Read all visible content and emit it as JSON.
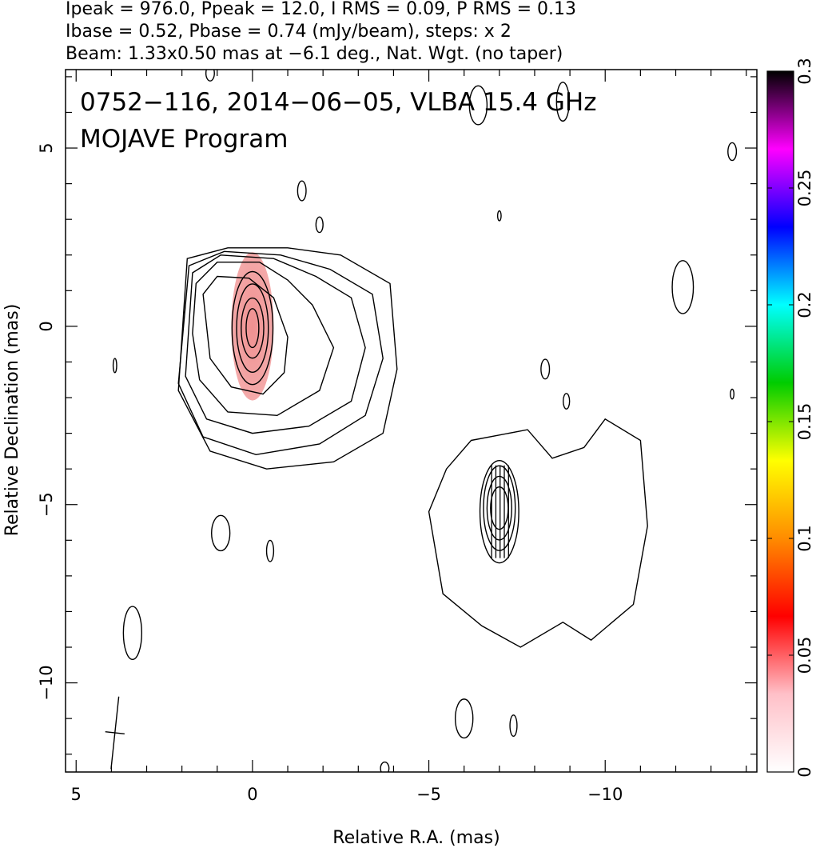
{
  "header": {
    "line1": "Ipeak = 976.0, Ppeak = 12.0, I RMS = 0.09, P RMS = 0.13",
    "line2": "Ibase = 0.52, Pbase = 0.74 (mJy/beam), steps: x 2",
    "line3": "Beam: 1.33x0.50 mas at −6.1 deg., Nat. Wgt. (no taper)"
  },
  "overlay": {
    "line1": "0752−116, 2014−06−05, VLBA 15.4 GHz",
    "line2": "MOJAVE Program"
  },
  "chart_data": {
    "type": "heatmap",
    "subtype": "radio contour map with polarization colour overlay",
    "xlabel": "Relative R.A. (mas)",
    "ylabel": "Relative Declination (mas)",
    "xlim": [
      5.3,
      -14.3
    ],
    "ylim": [
      -12.5,
      7.2
    ],
    "x_reversed": true,
    "xticks": [
      5,
      0,
      -5,
      -10
    ],
    "xtick_labels": [
      "5",
      "0",
      "−5",
      "−10"
    ],
    "yticks": [
      5,
      0,
      -5,
      -10
    ],
    "ytick_labels": [
      "5",
      "0",
      "−5",
      "−10"
    ],
    "colorbar": {
      "label_ticks": [
        0,
        0.05,
        0.1,
        0.15,
        0.2,
        0.25,
        0.3
      ],
      "label_texts": [
        "0",
        "0.05",
        "0.1",
        "0.15",
        "0.2",
        "0.25",
        "0.3"
      ],
      "range": [
        0,
        0.3
      ],
      "colors": [
        "#ffffff",
        "#ffc0c8",
        "#ff0000",
        "#ff8c00",
        "#ffff00",
        "#00cc00",
        "#00ffff",
        "#0000ff",
        "#ff00ff",
        "#000000"
      ]
    },
    "core": {
      "ra": 0.0,
      "dec": 0.0,
      "peak_mJy_per_beam": 976.0
    },
    "secondary_component": {
      "ra": -7.0,
      "dec": -5.1
    },
    "beam": {
      "major_mas": 1.33,
      "minor_mas": 0.5,
      "pa_deg": -6.1,
      "ra": 3.9,
      "dec": -11.4
    },
    "polarization_overlay_color": "#f4aaaa",
    "line_color": "#000000",
    "grid": false
  }
}
